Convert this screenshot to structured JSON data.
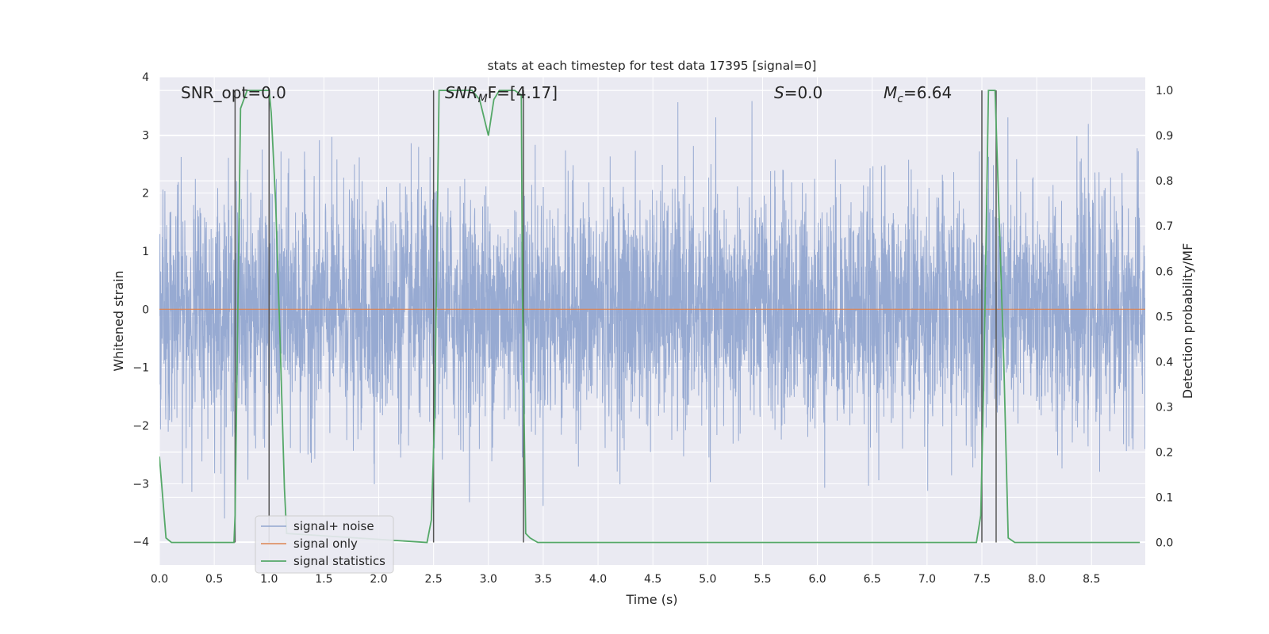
{
  "chart_data": {
    "type": "line",
    "title": "stats at each timestep for test data 17395 [signal=0]",
    "xlabel": "Time (s)",
    "ylabel": "Whitened strain",
    "ylabel_right": "Detection probability/MF",
    "xlim": [
      0,
      8.99
    ],
    "ylim": [
      -4.4,
      4.0
    ],
    "ylim_right": [
      -0.05,
      1.03
    ],
    "xticks": [
      "0.0",
      "0.5",
      "1.0",
      "1.5",
      "2.0",
      "2.5",
      "3.0",
      "3.5",
      "4.0",
      "4.5",
      "5.0",
      "5.5",
      "6.0",
      "6.5",
      "7.0",
      "7.5",
      "8.0",
      "8.5"
    ],
    "yticks": [
      "−4",
      "−3",
      "−2",
      "−1",
      "0",
      "1",
      "2",
      "3",
      "4"
    ],
    "yticks_right": [
      "0.0",
      "0.1",
      "0.2",
      "0.3",
      "0.4",
      "0.5",
      "0.6",
      "0.7",
      "0.8",
      "0.9",
      "1.0"
    ],
    "grid": true,
    "legend_position": "lower-left",
    "annotations": {
      "snr_opt": "SNR_opt=0.0",
      "snr_mf_base": "SNR",
      "snr_mf_sub": "M",
      "snr_mf_rest": "F=[4.17]",
      "s_base": "S",
      "s_rest": "=0.0",
      "mc_base": "M",
      "mc_sub": "c",
      "mc_rest": "=6.64"
    },
    "series": [
      {
        "name": "signal+ noise",
        "color": "#92a6d0",
        "description_x_range": [
          0,
          8.99
        ],
        "noise_amplitude_typical": [
          -1.7,
          1.8
        ],
        "noise_amplitude_extreme": [
          -3.6,
          3.65
        ]
      },
      {
        "name": "signal only",
        "color": "#dd8452",
        "constant_value": 0
      },
      {
        "name": "signal statistics",
        "color": "#55a868",
        "axis": "right",
        "x": [
          0.0,
          0.06,
          0.11,
          0.68,
          0.69,
          0.74,
          0.8,
          1.0,
          1.02,
          1.06,
          1.1,
          1.14,
          1.16,
          2.44,
          2.48,
          2.51,
          2.55,
          2.6,
          2.85,
          2.92,
          3.0,
          3.05,
          3.1,
          3.16,
          3.24,
          3.3,
          3.31,
          3.34,
          3.38,
          3.45,
          7.45,
          7.49,
          7.52,
          7.56,
          7.62,
          7.7,
          7.74,
          7.8,
          8.94
        ],
        "y": [
          0.19,
          0.01,
          0.0,
          0.0,
          0.06,
          0.96,
          1.0,
          1.0,
          0.95,
          0.75,
          0.45,
          0.12,
          0.02,
          0.0,
          0.05,
          0.28,
          1.0,
          1.0,
          1.0,
          0.98,
          0.9,
          0.98,
          1.0,
          1.0,
          1.0,
          0.99,
          0.55,
          0.02,
          0.01,
          0.0,
          0.0,
          0.06,
          0.4,
          1.0,
          1.0,
          0.4,
          0.01,
          0.0,
          0.0
        ]
      }
    ],
    "vertical_lines_x": [
      0.69,
      1.0,
      2.5,
      3.32,
      7.5,
      7.63
    ],
    "vertical_lines_color": "#555555"
  }
}
